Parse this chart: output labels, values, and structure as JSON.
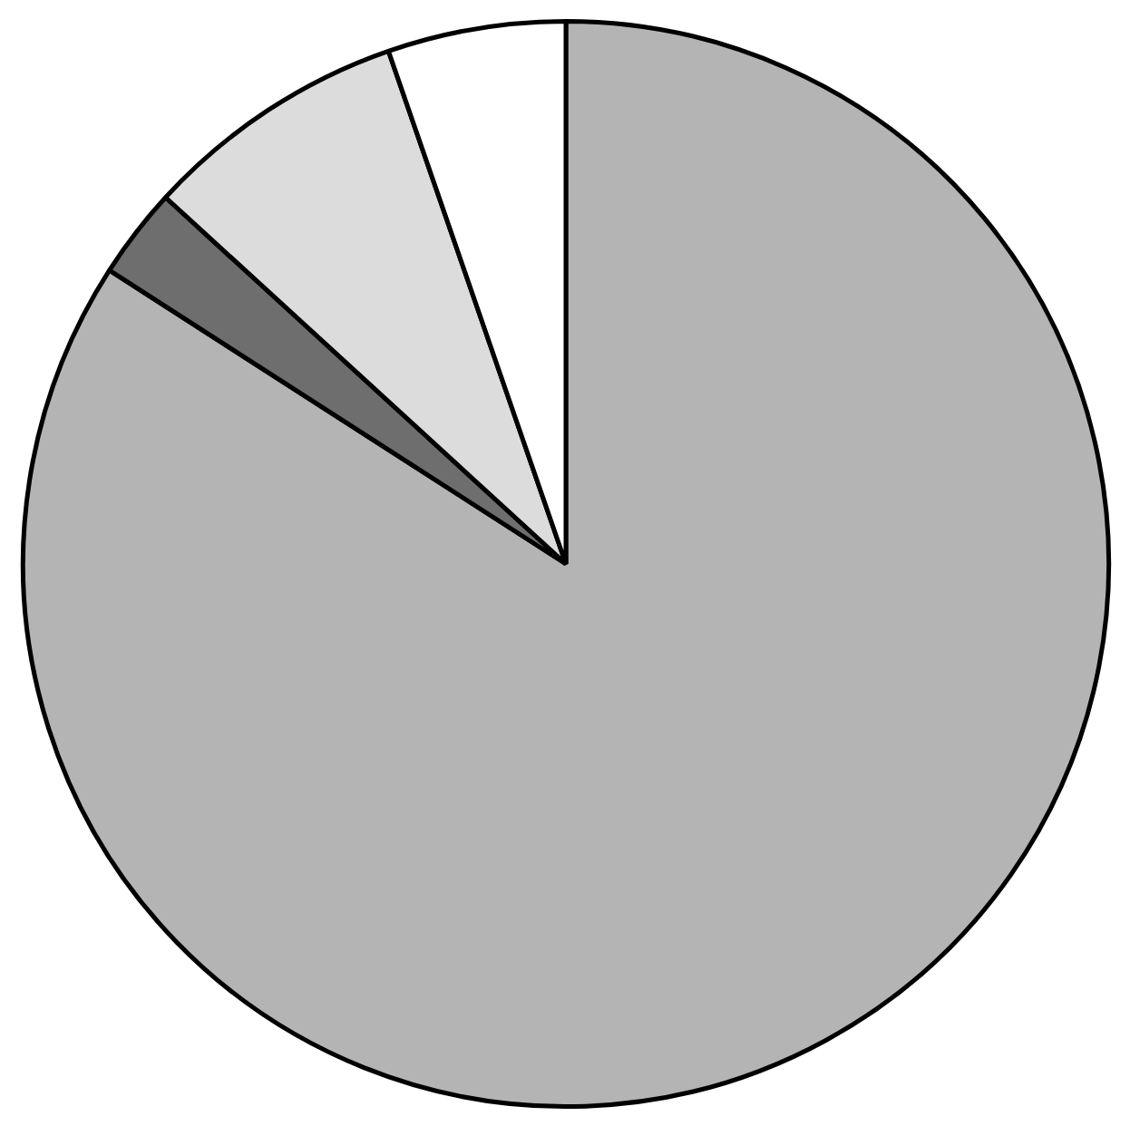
{
  "chart_data": {
    "type": "pie",
    "categories": [
      null,
      null,
      null,
      null
    ],
    "values": [
      84.1,
      2.7,
      7.9,
      5.3
    ],
    "colors": [
      "#b4b4b4",
      "#6e6e6e",
      "#dcdcdc",
      "#ffffff"
    ]
  }
}
